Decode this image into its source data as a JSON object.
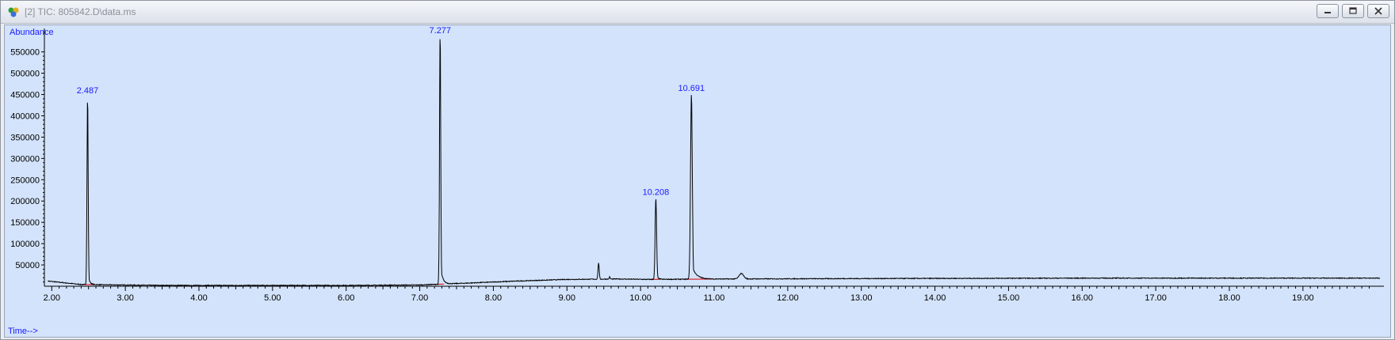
{
  "window": {
    "title": "[2] TIC: 805842.D\\data.ms"
  },
  "colors": {
    "plot_background": "#d3e3fb",
    "trace": "#000000",
    "baseline_marker": "#e00000",
    "label_blue": "#1a1aff"
  },
  "chart_data": {
    "type": "line",
    "ylabel": "Abundance",
    "xlabel": "Time-->",
    "xlim": [
      1.9,
      20.1
    ],
    "ylim": [
      0,
      605000
    ],
    "x_ticks": [
      "2.00",
      "3.00",
      "4.00",
      "5.00",
      "6.00",
      "7.00",
      "8.00",
      "9.00",
      "10.00",
      "11.00",
      "12.00",
      "13.00",
      "14.00",
      "15.00",
      "16.00",
      "17.00",
      "18.00",
      "19.00"
    ],
    "y_ticks": [
      "50000",
      "100000",
      "150000",
      "200000",
      "250000",
      "300000",
      "350000",
      "400000",
      "450000",
      "500000",
      "550000"
    ],
    "grid": false,
    "peaks": [
      {
        "label": "2.487",
        "x": 2.487,
        "y": 445000
      },
      {
        "label": "7.277",
        "x": 7.277,
        "y": 598000
      },
      {
        "label": "10.208",
        "x": 10.208,
        "y": 207000
      },
      {
        "label": "10.691",
        "x": 10.691,
        "y": 451000
      }
    ],
    "minor_peaks": [
      {
        "x": 9.43,
        "y": 55000
      },
      {
        "x": 9.58,
        "y": 22000
      },
      {
        "x": 11.37,
        "y": 30000
      }
    ],
    "baseline": [
      {
        "x": 1.95,
        "y": 12000
      },
      {
        "x": 2.4,
        "y": 4000
      },
      {
        "x": 3.5,
        "y": 2000
      },
      {
        "x": 6.0,
        "y": 2000
      },
      {
        "x": 7.0,
        "y": 3000
      },
      {
        "x": 7.6,
        "y": 7000
      },
      {
        "x": 8.3,
        "y": 12000
      },
      {
        "x": 9.0,
        "y": 16000
      },
      {
        "x": 9.7,
        "y": 17000
      },
      {
        "x": 10.1,
        "y": 16000
      },
      {
        "x": 11.1,
        "y": 17000
      },
      {
        "x": 13.0,
        "y": 18000
      },
      {
        "x": 16.0,
        "y": 19000
      },
      {
        "x": 20.0,
        "y": 19000
      }
    ]
  }
}
